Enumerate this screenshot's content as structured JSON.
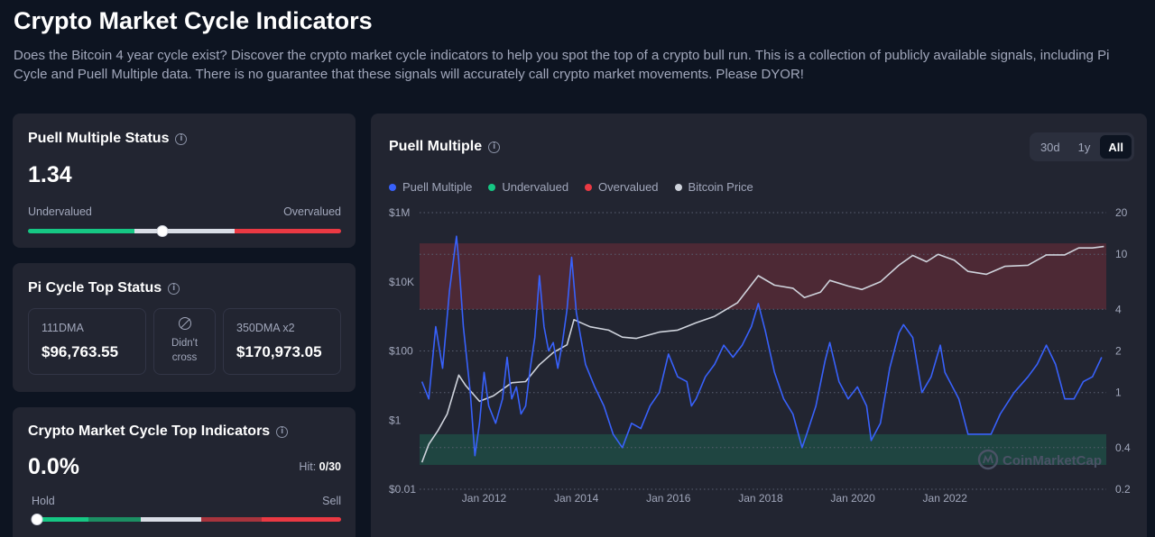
{
  "page": {
    "title": "Crypto Market Cycle Indicators",
    "description": "Does the Bitcoin 4 year cycle exist? Discover the crypto market cycle indicators to help you spot the top of a crypto bull run. This is a collection of publicly available signals, including Pi Cycle and Puell Multiple data. There is no guarantee that these signals will accurately call crypto market movements. Please DYOR!"
  },
  "puell_status": {
    "title": "Puell Multiple Status",
    "value": "1.34",
    "low_label": "Undervalued",
    "high_label": "Overvalued",
    "gauge_level": 0.43,
    "colors": {
      "low": "#16c784",
      "mid": "#d9dde6",
      "high": "#ea3943"
    }
  },
  "pi_cycle": {
    "title": "Pi Cycle Top Status",
    "dma111_label": "111DMA",
    "dma111_value": "$96,763.55",
    "cross_status": "Didn't\ncross",
    "dma350_label": "350DMA x2",
    "dma350_value": "$170,973.05"
  },
  "cycle_top": {
    "title": "Crypto Market Cycle Top Indicators",
    "value": "0.0%",
    "hit_label": "Hit:",
    "hit_value": "0/30",
    "low_label": "Hold",
    "high_label": "Sell",
    "gauge_level": 0.0
  },
  "chart_panel": {
    "title": "Puell Multiple",
    "ranges": [
      "30d",
      "1y",
      "All"
    ],
    "active_range": "All",
    "watermark": "CoinMarketCap"
  },
  "chart_data": {
    "type": "line",
    "title": "Puell Multiple",
    "legend": [
      {
        "name": "Puell Multiple",
        "color": "#3861fb"
      },
      {
        "name": "Undervalued",
        "color": "#16c784"
      },
      {
        "name": "Overvalued",
        "color": "#ea3943"
      },
      {
        "name": "Bitcoin Price",
        "color": "#cfd3dc"
      }
    ],
    "legend_position": "top-left",
    "x_ticks": [
      "Jan 2012",
      "Jan 2014",
      "Jan 2016",
      "Jan 2018",
      "Jan 2020",
      "Jan 2022"
    ],
    "x_range": [
      2010.6,
      2025.5
    ],
    "y_left": {
      "ticks": [
        "$0.01",
        "$1",
        "$100",
        "$10K",
        "$1M"
      ],
      "scale": "log",
      "range": [
        0.01,
        1000000
      ]
    },
    "y_right": {
      "ticks": [
        "0.2",
        "0.4",
        "1",
        "2",
        "4",
        "10",
        "20"
      ],
      "scale": "log",
      "range": [
        0.2,
        20
      ]
    },
    "bands": [
      {
        "name": "Overvalued",
        "from": 4,
        "to": 12,
        "color": "#ea3943"
      },
      {
        "name": "Undervalued",
        "from": 0.3,
        "to": 0.5,
        "color": "#16c784"
      }
    ],
    "grid": "dotted-horizontal",
    "series": [
      {
        "name": "Puell Multiple",
        "axis": "right",
        "x": [
          2010.65,
          2010.8,
          2010.95,
          2011.1,
          2011.25,
          2011.4,
          2011.45,
          2011.55,
          2011.7,
          2011.8,
          2011.9,
          2012.0,
          2012.1,
          2012.25,
          2012.4,
          2012.5,
          2012.6,
          2012.7,
          2012.8,
          2012.9,
          2013.0,
          2013.1,
          2013.2,
          2013.3,
          2013.4,
          2013.5,
          2013.6,
          2013.7,
          2013.8,
          2013.9,
          2014.0,
          2014.2,
          2014.4,
          2014.6,
          2014.8,
          2015.0,
          2015.2,
          2015.4,
          2015.6,
          2015.8,
          2016.0,
          2016.2,
          2016.4,
          2016.5,
          2016.6,
          2016.8,
          2017.0,
          2017.2,
          2017.4,
          2017.6,
          2017.8,
          2017.95,
          2018.1,
          2018.3,
          2018.5,
          2018.7,
          2018.9,
          2019.0,
          2019.2,
          2019.4,
          2019.5,
          2019.7,
          2019.9,
          2020.1,
          2020.3,
          2020.4,
          2020.6,
          2020.8,
          2021.0,
          2021.1,
          2021.3,
          2021.5,
          2021.7,
          2021.9,
          2022.0,
          2022.3,
          2022.5,
          2022.8,
          2023.0,
          2023.2,
          2023.5,
          2023.8,
          2024.0,
          2024.2,
          2024.4,
          2024.6,
          2024.8,
          2025.0,
          2025.2,
          2025.4
        ],
        "y": [
          1.2,
          0.9,
          3.0,
          1.5,
          5.5,
          13.5,
          9.0,
          3.0,
          1.0,
          0.35,
          0.6,
          1.4,
          0.8,
          0.6,
          0.9,
          1.8,
          0.9,
          1.1,
          0.7,
          0.8,
          1.5,
          2.5,
          7.0,
          3.0,
          2.0,
          2.3,
          1.5,
          2.3,
          4.0,
          9.5,
          3.8,
          1.6,
          1.1,
          0.8,
          0.5,
          0.4,
          0.6,
          0.55,
          0.8,
          1.0,
          1.9,
          1.3,
          1.2,
          0.8,
          0.9,
          1.3,
          1.6,
          2.2,
          1.8,
          2.2,
          3.0,
          4.4,
          2.8,
          1.4,
          0.9,
          0.7,
          0.4,
          0.5,
          0.8,
          1.7,
          2.3,
          1.2,
          0.9,
          1.1,
          0.8,
          0.45,
          0.6,
          1.5,
          2.7,
          3.1,
          2.5,
          1.0,
          1.3,
          2.2,
          1.4,
          0.9,
          0.5,
          0.5,
          0.5,
          0.7,
          1.0,
          1.3,
          1.6,
          2.2,
          1.6,
          0.9,
          0.9,
          1.2,
          1.3,
          1.8
        ]
      },
      {
        "name": "Bitcoin Price",
        "axis": "left",
        "x": [
          2010.65,
          2010.8,
          2011.0,
          2011.2,
          2011.45,
          2011.6,
          2011.9,
          2012.2,
          2012.6,
          2012.9,
          2013.2,
          2013.5,
          2013.8,
          2013.95,
          2014.3,
          2014.7,
          2015.0,
          2015.3,
          2015.8,
          2016.2,
          2016.6,
          2017.0,
          2017.5,
          2017.95,
          2018.3,
          2018.7,
          2018.95,
          2019.3,
          2019.5,
          2019.9,
          2020.2,
          2020.6,
          2021.0,
          2021.3,
          2021.6,
          2021.85,
          2022.2,
          2022.5,
          2022.9,
          2023.3,
          2023.8,
          2024.2,
          2024.6,
          2024.9,
          2025.2,
          2025.45
        ],
        "y": [
          0.06,
          0.2,
          0.5,
          1.5,
          20,
          10,
          3.5,
          5,
          12,
          13,
          40,
          90,
          150,
          800,
          500,
          400,
          250,
          230,
          350,
          400,
          650,
          1000,
          2500,
          15000,
          8000,
          6500,
          3500,
          5000,
          11000,
          7500,
          6000,
          10000,
          30000,
          58000,
          38000,
          62000,
          42000,
          20000,
          16500,
          28000,
          30000,
          60000,
          60000,
          95000,
          95000,
          105000
        ]
      }
    ]
  }
}
